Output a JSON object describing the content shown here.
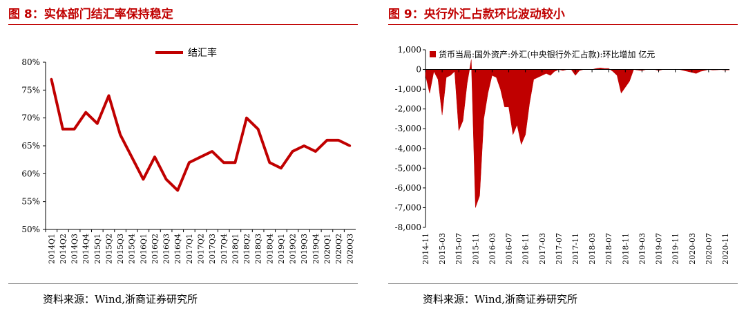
{
  "charts": [
    {
      "title": "图 8：实体部门结汇率保持稳定",
      "source": "资料来源：Wind,浙商证券研究所",
      "colors": {
        "accent": "#c00000",
        "series": "#c00000"
      },
      "chart_data": {
        "type": "line",
        "title": "图 8：实体部门结汇率保持稳定",
        "categories": [
          "2014Q1",
          "2014Q2",
          "2014Q3",
          "2014Q4",
          "2015Q1",
          "2015Q2",
          "2015Q3",
          "2015Q4",
          "2016Q1",
          "2016Q2",
          "2016Q3",
          "2016Q4",
          "2017Q1",
          "2017Q2",
          "2017Q3",
          "2017Q4",
          "2018Q1",
          "2018Q2",
          "2018Q3",
          "2018Q4",
          "2019Q1",
          "2019Q2",
          "2019Q3",
          "2019Q4",
          "2020Q1",
          "2020Q2",
          "2020Q3"
        ],
        "series": [
          {
            "name": "结汇率",
            "values": [
              77,
              68,
              68,
              71,
              69,
              74,
              67,
              63,
              59,
              63,
              59,
              57,
              62,
              63,
              64,
              62,
              62,
              70,
              68,
              62,
              61,
              64,
              65,
              64,
              66,
              66,
              65
            ]
          }
        ],
        "y_unit": "%",
        "ylim": [
          50,
          80
        ],
        "yticks": [
          50,
          55,
          60,
          65,
          70,
          75,
          80
        ],
        "legend": "top-center",
        "grid": false
      }
    },
    {
      "title": "图 9：央行外汇占款环比波动较小",
      "source": "资料来源：Wind,浙商证券研究所",
      "colors": {
        "accent": "#c00000",
        "series": "#c00000"
      },
      "chart_data": {
        "type": "area",
        "title": "图 9：央行外汇占款环比波动较小",
        "x": [
          "2014-11",
          "2014-12",
          "2015-01",
          "2015-02",
          "2015-03",
          "2015-04",
          "2015-05",
          "2015-06",
          "2015-07",
          "2015-08",
          "2015-09",
          "2015-10",
          "2015-11",
          "2015-12",
          "2016-01",
          "2016-02",
          "2016-03",
          "2016-04",
          "2016-05",
          "2016-06",
          "2016-07",
          "2016-08",
          "2016-09",
          "2016-10",
          "2016-11",
          "2016-12",
          "2017-01",
          "2017-02",
          "2017-03",
          "2017-04",
          "2017-05",
          "2017-06",
          "2017-07",
          "2017-08",
          "2017-09",
          "2017-10",
          "2017-11",
          "2017-12",
          "2018-01",
          "2018-02",
          "2018-03",
          "2018-04",
          "2018-05",
          "2018-06",
          "2018-07",
          "2018-08",
          "2018-09",
          "2018-10",
          "2018-11",
          "2018-12",
          "2019-01",
          "2019-02",
          "2019-03",
          "2019-04",
          "2019-05",
          "2019-06",
          "2019-07",
          "2019-08",
          "2019-09",
          "2019-10",
          "2019-11",
          "2019-12",
          "2020-01",
          "2020-02",
          "2020-03",
          "2020-04",
          "2020-05",
          "2020-06",
          "2020-07",
          "2020-08",
          "2020-09",
          "2020-10",
          "2020-11",
          "2020-12"
        ],
        "x_tick_labels": [
          "2014-11",
          "2015-03",
          "2015-07",
          "2015-11",
          "2016-03",
          "2016-07",
          "2016-11",
          "2017-03",
          "2017-07",
          "2017-11",
          "2018-03",
          "2018-07",
          "2018-11",
          "2019-03",
          "2019-07",
          "2019-11",
          "2020-03",
          "2020-07",
          "2020-11"
        ],
        "series": [
          {
            "name": "货币当局:国外资产:外汇(中央银行外汇占款):环比增加 亿元",
            "values": [
              -300,
              -1200,
              -100,
              -500,
              -2300,
              -400,
              -300,
              -100,
              -3100,
              -2600,
              -700,
              500,
              -7000,
              -6400,
              -2500,
              -1200,
              -300,
              -400,
              -1000,
              -1900,
              -1900,
              -3300,
              -2800,
              -3800,
              -3300,
              -1700,
              -500,
              -400,
              -300,
              -200,
              -300,
              -100,
              0,
              -50,
              0,
              0,
              -300,
              -50,
              0,
              0,
              0,
              50,
              80,
              50,
              50,
              -100,
              -300,
              -1200,
              -900,
              -600,
              0,
              -30,
              -50,
              0,
              0,
              0,
              -50,
              0,
              0,
              0,
              0,
              0,
              -50,
              -100,
              -150,
              -200,
              -100,
              -50,
              0,
              -30,
              -20,
              -10,
              -30,
              -20
            ]
          }
        ],
        "ylim": [
          -8000,
          1000
        ],
        "yticks": [
          1000,
          0,
          -1000,
          -2000,
          -3000,
          -4000,
          -5000,
          -6000,
          -7000,
          -8000
        ],
        "ytick_labels": [
          "1,000",
          "0",
          "-1,000",
          "-2,000",
          "-3,000",
          "-4,000",
          "-5,000",
          "-6,000",
          "-7,000",
          "-8,000"
        ],
        "legend": "top-left",
        "grid": false
      }
    }
  ]
}
